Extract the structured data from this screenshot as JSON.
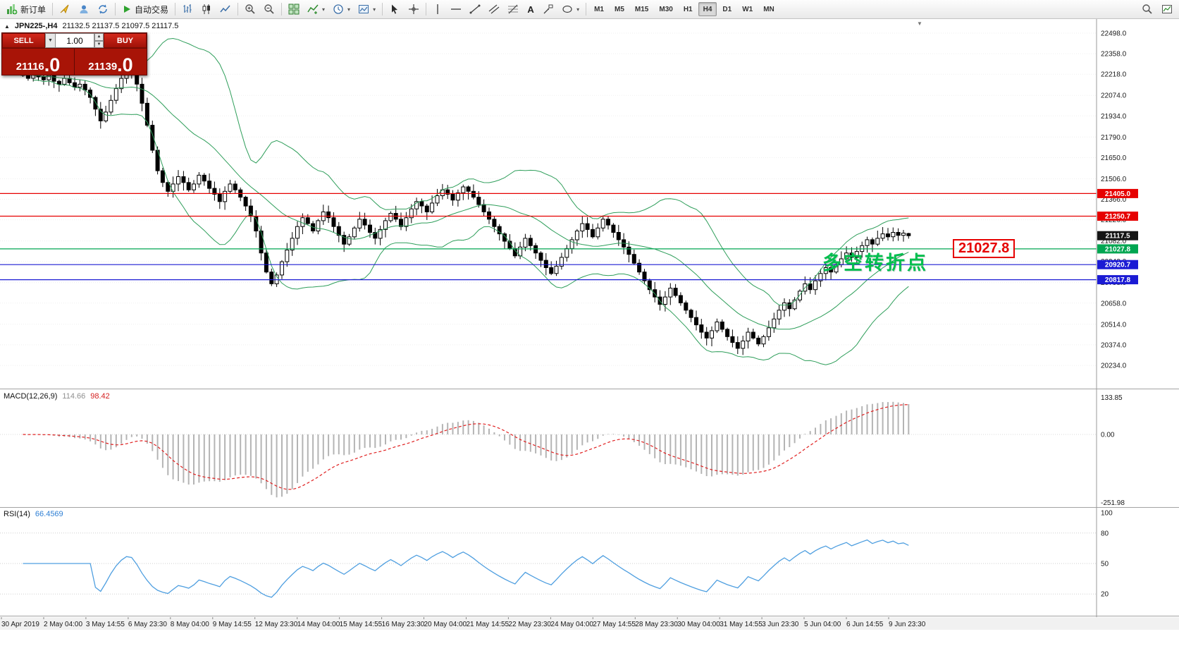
{
  "toolbar": {
    "new_order_label": "新订单",
    "auto_trading_label": "自动交易",
    "text_tool_label": "A",
    "timeframes": [
      "M1",
      "M5",
      "M15",
      "M30",
      "H1",
      "H4",
      "D1",
      "W1",
      "MN"
    ],
    "active_timeframe": "H4"
  },
  "symbol_info": {
    "collapse_icon": "▲",
    "title": "JPN225-,H4",
    "ohlc": "21132.5 21137.5 21097.5 21117.5"
  },
  "trade_panel": {
    "sell_label": "SELL",
    "buy_label": "BUY",
    "volume": "1.00",
    "sell_price": "21116",
    "sell_price_big": ".0",
    "buy_price": "21139",
    "buy_price_big": ".0"
  },
  "annotations": {
    "turning_point_text": "多空转折点",
    "turning_point_color": "#00bf4e",
    "price_callout_text": "21027.8",
    "price_callout_color": "#e60000"
  },
  "chart_data": {
    "type": "candlestick",
    "symbol": "JPN225-",
    "timeframe": "H4",
    "title": "JPN225-,H4",
    "last_ohlc": {
      "open": 21132.5,
      "high": 21137.5,
      "low": 21097.5,
      "close": 21117.5
    },
    "current_price": 21117.5,
    "current_price_badge_bg": "#141414",
    "price_axis_ticks": [
      22498.0,
      22358.0,
      22218.0,
      22074.0,
      21934.0,
      21790.0,
      21650.0,
      21506.0,
      21366.0,
      21226.0,
      21082.0,
      20942.0,
      20798.0,
      20658.0,
      20514.0,
      20374.0,
      20234.0
    ],
    "levels": [
      {
        "price": 21405.0,
        "color": "#e60000"
      },
      {
        "price": 21250.7,
        "color": "#e60000"
      },
      {
        "price": 21027.8,
        "color": "#00a651"
      },
      {
        "price": 20920.7,
        "color": "#1b1bd4"
      },
      {
        "price": 20817.8,
        "color": "#1b1bd4"
      }
    ],
    "closes": [
      22210,
      22190,
      22230,
      22200,
      22180,
      22210,
      22170,
      22150,
      22190,
      22160,
      22130,
      22150,
      22110,
      22060,
      21980,
      21900,
      21960,
      22040,
      22120,
      22190,
      22240,
      22230,
      22150,
      22020,
      21870,
      21700,
      21560,
      21480,
      21420,
      21470,
      21520,
      21480,
      21430,
      21470,
      21530,
      21490,
      21440,
      21400,
      21350,
      21420,
      21470,
      21430,
      21380,
      21320,
      21250,
      21150,
      21000,
      20870,
      20790,
      20850,
      20940,
      21020,
      21100,
      21180,
      21240,
      21200,
      21150,
      21220,
      21280,
      21240,
      21180,
      21120,
      21060,
      21110,
      21170,
      21230,
      21190,
      21140,
      21100,
      21160,
      21220,
      21270,
      21230,
      21180,
      21240,
      21300,
      21350,
      21320,
      21280,
      21340,
      21390,
      21430,
      21400,
      21360,
      21410,
      21450,
      21420,
      21380,
      21330,
      21280,
      21230,
      21180,
      21130,
      21080,
      21030,
      20980,
      21040,
      21100,
      21050,
      21000,
      20950,
      20900,
      20860,
      20910,
      20970,
      21030,
      21090,
      21150,
      21200,
      21160,
      21110,
      21170,
      21230,
      21190,
      21140,
      21090,
      21040,
      20990,
      20930,
      20870,
      20810,
      20750,
      20700,
      20650,
      20700,
      20760,
      20710,
      20660,
      20610,
      20560,
      20510,
      20460,
      20420,
      20470,
      20530,
      20480,
      20430,
      20390,
      20350,
      20400,
      20460,
      20420,
      20380,
      20430,
      20490,
      20550,
      20610,
      20660,
      20620,
      20680,
      20740,
      20790,
      20750,
      20810,
      20860,
      20900,
      20870,
      20920,
      20960,
      21000,
      20970,
      21010,
      21050,
      21090,
      21060,
      21100,
      21130,
      21110,
      21140,
      21120,
      21135,
      21117.5
    ],
    "candle_colors": {
      "bull_fill": "#ffffff",
      "bear_fill": "#000000",
      "outline": "#000000"
    },
    "indicators": {
      "bollinger": {
        "period": 20,
        "deviation": 2,
        "color": "#2e9e5a"
      },
      "macd": {
        "label": "MACD(12,26,9)",
        "main_value": "114.66",
        "signal_value": "98.42",
        "scale_max": "133.85",
        "scale_zero": "0.00",
        "scale_min": "-251.98",
        "histogram_color": "#b4b4b4",
        "signal_color": "#e02020"
      },
      "rsi": {
        "label": "RSI(14)",
        "value": "66.4569",
        "line_color": "#4f9fe0",
        "scale_labels": [
          100,
          80,
          50,
          20
        ],
        "levels": [
          80,
          50,
          20
        ]
      }
    },
    "time_axis": [
      "30 Apr 2019",
      "2 May 04:00",
      "3 May 14:55",
      "6 May 23:30",
      "8 May 04:00",
      "9 May 14:55",
      "12 May 23:30",
      "14 May 04:00",
      "15 May 14:55",
      "16 May 23:30",
      "20 May 04:00",
      "21 May 14:55",
      "22 May 23:30",
      "24 May 04:00",
      "27 May 14:55",
      "28 May 23:30",
      "30 May 04:00",
      "31 May 14:55",
      "3 Jun 23:30",
      "5 Jun 04:00",
      "6 Jun 14:55",
      "9 Jun 23:30"
    ]
  }
}
